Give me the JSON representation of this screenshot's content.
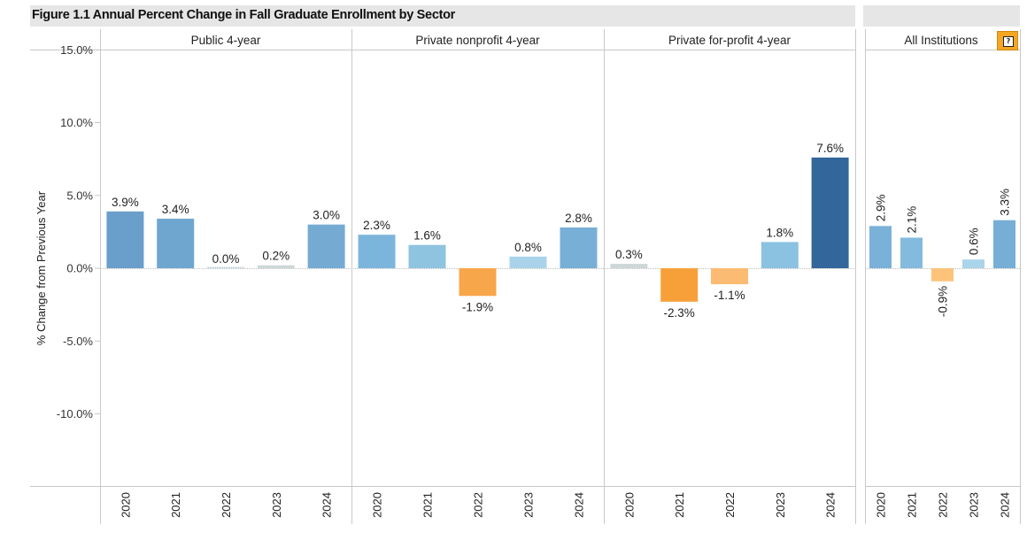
{
  "title": "Figure 1.1 Annual Percent Change in Fall Graduate Enrollment by Sector",
  "help_icon": "help-icon",
  "chart_data": {
    "type": "bar",
    "ylabel": "% Change from Previous Year",
    "ylim": [
      -15,
      15
    ],
    "yticks": [
      "15.0%",
      "10.0%",
      "5.0%",
      "0.0%",
      "-5.0%",
      "-10.0%"
    ],
    "categories": [
      "2020",
      "2021",
      "2022",
      "2023",
      "2024"
    ],
    "grid": false,
    "panels": [
      {
        "name": "Public 4-year",
        "values": [
          3.9,
          3.4,
          0.0,
          0.2,
          3.0
        ],
        "labels": [
          "3.9%",
          "3.4%",
          "0.0%",
          "0.2%",
          "3.0%"
        ],
        "colors": [
          "#6a9ecb",
          "#6fa6d0",
          "#cfdde3",
          "#cdd7d8",
          "#75abd3"
        ]
      },
      {
        "name": "Private nonprofit 4-year",
        "values": [
          2.3,
          1.6,
          -1.9,
          0.8,
          2.8
        ],
        "labels": [
          "2.3%",
          "1.6%",
          "-1.9%",
          "0.8%",
          "2.8%"
        ],
        "colors": [
          "#7cb5dc",
          "#8fc4e1",
          "#f8a64a",
          "#a9d3ea",
          "#78afd6"
        ]
      },
      {
        "name": "Private for-profit 4-year",
        "values": [
          0.3,
          -2.3,
          -1.1,
          1.8,
          7.6
        ],
        "labels": [
          "0.3%",
          "-2.3%",
          "-1.1%",
          "1.8%",
          "7.6%"
        ],
        "colors": [
          "#cdd7d8",
          "#f7a03a",
          "#fcbb72",
          "#8cc2e1",
          "#33669b"
        ]
      },
      {
        "name": "All Institutions",
        "values": [
          2.9,
          2.1,
          -0.9,
          0.6,
          3.3
        ],
        "labels": [
          "2.9%",
          "2.1%",
          "-0.9%",
          "0.6%",
          "3.3%"
        ],
        "colors": [
          "#7ab1d8",
          "#84bade",
          "#fdc37a",
          "#aad4e9",
          "#77aed6"
        ]
      }
    ]
  }
}
